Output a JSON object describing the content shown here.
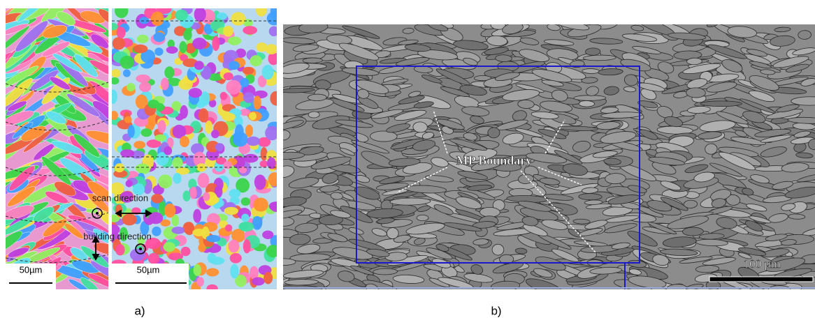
{
  "panels": [
    {
      "label": "a)",
      "scale_bars": [
        "50µm",
        "50µm"
      ],
      "annotations": [
        "scan direction",
        "building direction"
      ]
    },
    {
      "label": "b)",
      "annotation": "MP Boundary",
      "scale_bar": "100 µm"
    }
  ]
}
